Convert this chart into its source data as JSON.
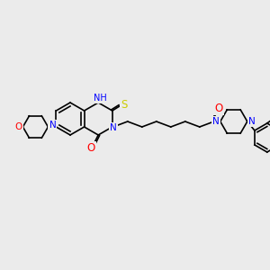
{
  "background_color": "#ebebeb",
  "bond_color": "#000000",
  "atom_colors": {
    "N": "#0000ff",
    "O": "#ff0000",
    "S": "#cccc00",
    "C": "#000000"
  },
  "font_size": 7.5,
  "bond_width": 1.2,
  "figsize": [
    3.0,
    3.0
  ],
  "dpi": 100
}
